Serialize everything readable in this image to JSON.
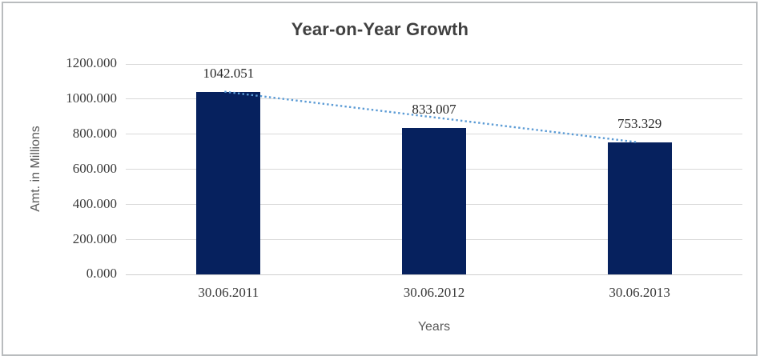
{
  "chart_data": {
    "type": "bar",
    "title": "Year-on-Year Growth",
    "xlabel": "Years",
    "ylabel": "Amt. in Millions",
    "categories": [
      "30.06.2011",
      "30.06.2012",
      "30.06.2013"
    ],
    "values": [
      1042.051,
      833.007,
      753.329
    ],
    "value_labels": [
      "1042.051",
      "833.007",
      "753.329"
    ],
    "ylim": [
      0,
      1200
    ],
    "ytick_step": 200,
    "ytick_labels": [
      "0.000",
      "200.000",
      "400.000",
      "600.000",
      "800.000",
      "1000.000",
      "1200.000"
    ],
    "grid": true,
    "legend_position": "none",
    "trendline": {
      "style": "dotted",
      "color": "#5b9bd5",
      "from_category_index": 0,
      "to_category_index": 2
    },
    "colors": {
      "bar": "#06215e",
      "gridline": "#d9d9d9",
      "axis_line": "#cfcfcf",
      "title_text": "#404040",
      "tick_text": "#3a3a3a",
      "axis_title_text": "#595959",
      "frame_border": "#b9bcbe",
      "background": "#ffffff"
    }
  }
}
